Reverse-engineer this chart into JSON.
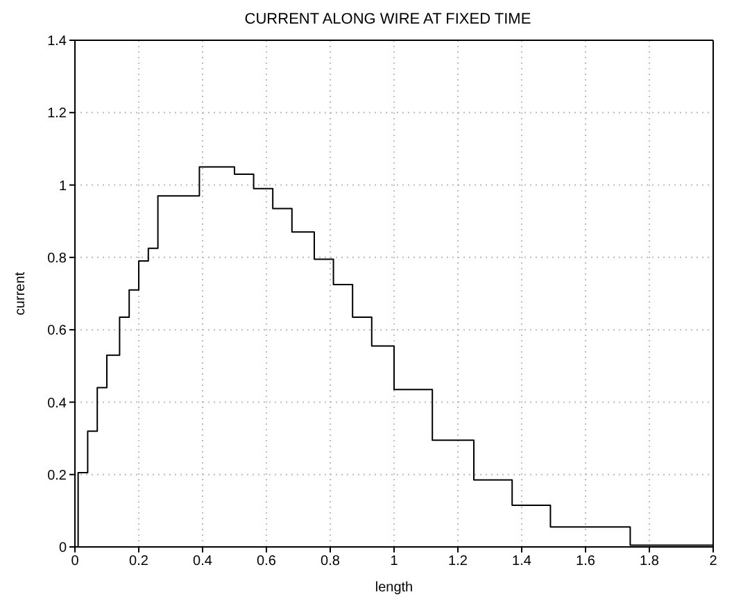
{
  "chart_data": {
    "type": "step",
    "title": "CURRENT ALONG WIRE AT FIXED TIME",
    "xlabel": "length",
    "ylabel": "current",
    "x": [
      0.01,
      0.01,
      0.04,
      0.07,
      0.1,
      0.14,
      0.17,
      0.2,
      0.23,
      0.26,
      0.39,
      0.5,
      0.56,
      0.62,
      0.68,
      0.75,
      0.81,
      0.87,
      0.93,
      1.0,
      1.12,
      1.25,
      1.37,
      1.49,
      1.74,
      2.0
    ],
    "values": [
      0,
      0.205,
      0.32,
      0.44,
      0.53,
      0.635,
      0.71,
      0.79,
      0.825,
      0.97,
      1.05,
      1.03,
      0.99,
      0.935,
      0.87,
      0.795,
      0.725,
      0.635,
      0.555,
      0.435,
      0.295,
      0.185,
      0.115,
      0.055,
      0.005,
      0.005
    ],
    "color": "#000000",
    "xlim": [
      0,
      2
    ],
    "xticks": [
      0,
      0.2,
      0.4,
      0.6,
      0.8,
      1,
      1.2,
      1.4,
      1.6,
      1.8,
      2
    ],
    "ylim": [
      0,
      1.4
    ],
    "yticks": [
      0,
      0.2,
      0.4,
      0.6,
      0.8,
      1,
      1.2,
      1.4
    ],
    "grid": true,
    "line_style": "solid",
    "marker": "none"
  }
}
